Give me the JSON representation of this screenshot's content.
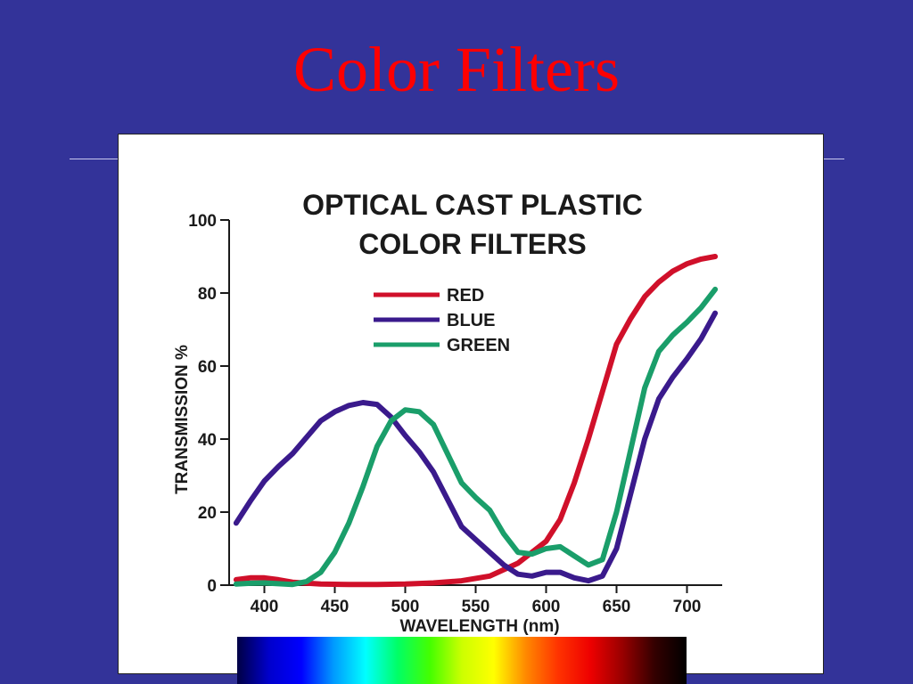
{
  "slide": {
    "title": "Color Filters"
  },
  "colors": {
    "background": "#333399",
    "title": "#ff0000",
    "spectrum_stops": [
      "#000044",
      "#0000cc",
      "#0000ff",
      "#0099ff",
      "#00ffff",
      "#00ff66",
      "#44ff00",
      "#ccff00",
      "#ffff00",
      "#ff8800",
      "#ff3300",
      "#ee0000",
      "#990000",
      "#330000",
      "#000000"
    ]
  },
  "chart_data": {
    "type": "line",
    "title_lines": [
      "OPTICAL CAST PLASTIC",
      "COLOR FILTERS"
    ],
    "xlabel": "WAVELENGTH (nm)",
    "ylabel": "TRANSMISSION %",
    "xlim": [
      375,
      725
    ],
    "ylim": [
      0,
      100
    ],
    "xticks": [
      400,
      450,
      500,
      550,
      600,
      650,
      700
    ],
    "yticks": [
      0,
      20,
      40,
      60,
      80,
      100
    ],
    "grid": false,
    "legend": "upper-center",
    "series": [
      {
        "name": "RED",
        "color": "#d0102a",
        "points": [
          [
            380,
            1.5
          ],
          [
            390,
            2
          ],
          [
            400,
            2
          ],
          [
            410,
            1.5
          ],
          [
            420,
            0.8
          ],
          [
            440,
            0.3
          ],
          [
            460,
            0.2
          ],
          [
            480,
            0.2
          ],
          [
            500,
            0.3
          ],
          [
            520,
            0.6
          ],
          [
            540,
            1.2
          ],
          [
            560,
            2.5
          ],
          [
            580,
            6
          ],
          [
            600,
            12
          ],
          [
            610,
            18
          ],
          [
            620,
            28
          ],
          [
            630,
            40
          ],
          [
            640,
            53
          ],
          [
            650,
            66
          ],
          [
            660,
            73
          ],
          [
            670,
            79
          ],
          [
            680,
            83
          ],
          [
            690,
            86
          ],
          [
            700,
            88
          ],
          [
            710,
            89.3
          ],
          [
            720,
            90
          ]
        ]
      },
      {
        "name": "BLUE",
        "color": "#3a1a8c",
        "points": [
          [
            380,
            17
          ],
          [
            390,
            23
          ],
          [
            400,
            28.5
          ],
          [
            410,
            32.5
          ],
          [
            420,
            36
          ],
          [
            430,
            40.5
          ],
          [
            440,
            45
          ],
          [
            450,
            47.5
          ],
          [
            460,
            49.2
          ],
          [
            470,
            50
          ],
          [
            480,
            49.5
          ],
          [
            490,
            46
          ],
          [
            500,
            41
          ],
          [
            510,
            36.5
          ],
          [
            520,
            31
          ],
          [
            530,
            23.5
          ],
          [
            540,
            16
          ],
          [
            550,
            12.5
          ],
          [
            560,
            9
          ],
          [
            570,
            5.5
          ],
          [
            580,
            3
          ],
          [
            590,
            2.5
          ],
          [
            600,
            3.5
          ],
          [
            610,
            3.5
          ],
          [
            620,
            2
          ],
          [
            630,
            1.2
          ],
          [
            640,
            2.5
          ],
          [
            650,
            10
          ],
          [
            660,
            25
          ],
          [
            670,
            40
          ],
          [
            680,
            51
          ],
          [
            690,
            57
          ],
          [
            700,
            62
          ],
          [
            710,
            67.5
          ],
          [
            720,
            74.5
          ]
        ]
      },
      {
        "name": "GREEN",
        "color": "#1a9e6a",
        "points": [
          [
            380,
            0.3
          ],
          [
            390,
            0.5
          ],
          [
            400,
            0.6
          ],
          [
            410,
            0.4
          ],
          [
            420,
            0.2
          ],
          [
            430,
            1
          ],
          [
            440,
            3.5
          ],
          [
            450,
            9
          ],
          [
            460,
            17
          ],
          [
            470,
            27
          ],
          [
            480,
            38
          ],
          [
            490,
            45
          ],
          [
            500,
            48
          ],
          [
            510,
            47.5
          ],
          [
            520,
            44
          ],
          [
            530,
            36
          ],
          [
            540,
            28
          ],
          [
            550,
            24
          ],
          [
            560,
            20.5
          ],
          [
            570,
            14
          ],
          [
            580,
            9
          ],
          [
            590,
            8.5
          ],
          [
            600,
            10
          ],
          [
            610,
            10.5
          ],
          [
            620,
            8
          ],
          [
            630,
            5.5
          ],
          [
            640,
            7
          ],
          [
            650,
            20
          ],
          [
            660,
            37
          ],
          [
            670,
            54
          ],
          [
            680,
            64
          ],
          [
            690,
            68.5
          ],
          [
            700,
            72
          ],
          [
            710,
            76
          ],
          [
            720,
            81
          ]
        ]
      }
    ]
  }
}
